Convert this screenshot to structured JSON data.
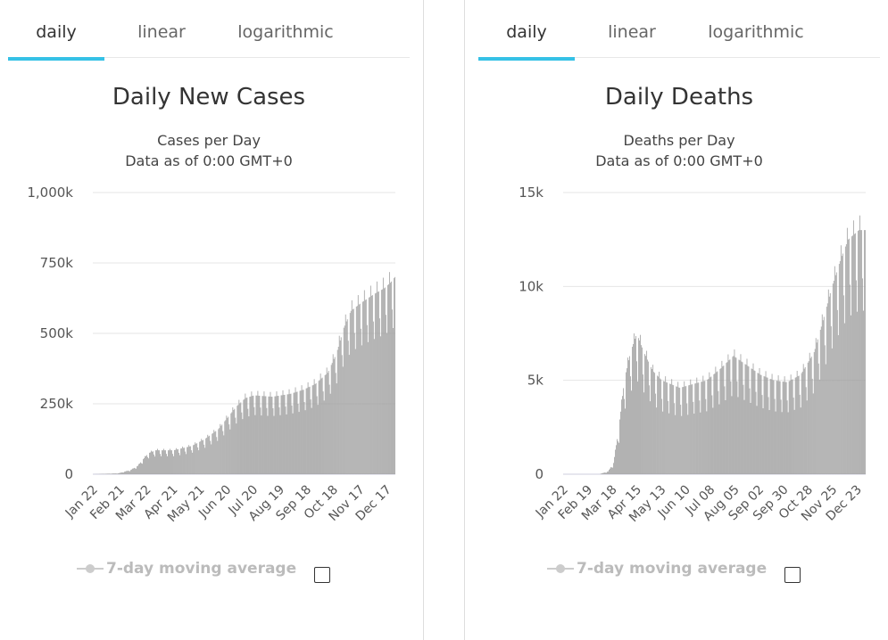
{
  "tabs": {
    "left": [
      {
        "label": "daily"
      },
      {
        "label": "linear"
      },
      {
        "label": "logarithmic"
      }
    ],
    "right": [
      {
        "label": "daily"
      },
      {
        "label": "linear"
      },
      {
        "label": "logarithmic"
      }
    ]
  },
  "legend": {
    "label": "7-day moving average"
  },
  "colors": {
    "bar": "#999999",
    "accent": "#35c1e6",
    "grid": "#e6e6e6"
  },
  "chart_data": [
    {
      "type": "bar",
      "title": "Daily New Cases",
      "subtitle": "Cases per Day",
      "subtitle2": "Data as of 0:00 GMT+0",
      "ylim": [
        0,
        1000000
      ],
      "yticks": [
        {
          "v": 0,
          "label": "0"
        },
        {
          "v": 250000,
          "label": "250k"
        },
        {
          "v": 500000,
          "label": "500k"
        },
        {
          "v": 750000,
          "label": "750k"
        },
        {
          "v": 1000000,
          "label": "1,000k"
        }
      ],
      "xticks": [
        "Jan 22",
        "Feb 21",
        "Mar 22",
        "Apr 21",
        "May 21",
        "Jun 20",
        "Jul 20",
        "Aug 19",
        "Sep 18",
        "Oct 18",
        "Nov 17",
        "Dec 17"
      ],
      "anchors": [
        [
          0,
          0
        ],
        [
          28,
          3000
        ],
        [
          42,
          15000
        ],
        [
          50,
          30000
        ],
        [
          55,
          50000
        ],
        [
          62,
          75000
        ],
        [
          70,
          85000
        ],
        [
          90,
          85000
        ],
        [
          110,
          100000
        ],
        [
          125,
          125000
        ],
        [
          140,
          160000
        ],
        [
          150,
          200000
        ],
        [
          160,
          240000
        ],
        [
          170,
          270000
        ],
        [
          180,
          280000
        ],
        [
          200,
          275000
        ],
        [
          220,
          285000
        ],
        [
          235,
          300000
        ],
        [
          248,
          320000
        ],
        [
          262,
          360000
        ],
        [
          272,
          430000
        ],
        [
          280,
          520000
        ],
        [
          288,
          580000
        ],
        [
          300,
          610000
        ],
        [
          314,
          640000
        ],
        [
          325,
          660000
        ],
        [
          332,
          680000
        ],
        [
          337,
          700000
        ]
      ],
      "weekly_dip": 0.25,
      "series": [
        {
          "values": []
        }
      ]
    },
    {
      "type": "bar",
      "title": "Daily Deaths",
      "subtitle": "Deaths per Day",
      "subtitle2": "Data as of 0:00 GMT+0",
      "ylim": [
        0,
        15000
      ],
      "yticks": [
        {
          "v": 0,
          "label": "0"
        },
        {
          "v": 5000,
          "label": "5k"
        },
        {
          "v": 10000,
          "label": "10k"
        },
        {
          "v": 15000,
          "label": "15k"
        }
      ],
      "xticks": [
        "Jan 22",
        "Feb 19",
        "Mar 18",
        "Apr 15",
        "May 13",
        "Jun 10",
        "Jul 08",
        "Aug 05",
        "Sep 02",
        "Sep 30",
        "Oct 28",
        "Nov 25",
        "Dec 23"
      ],
      "anchors": [
        [
          0,
          0
        ],
        [
          40,
          0
        ],
        [
          50,
          150
        ],
        [
          56,
          600
        ],
        [
          62,
          2500
        ],
        [
          68,
          5000
        ],
        [
          75,
          6500
        ],
        [
          82,
          7500
        ],
        [
          90,
          6500
        ],
        [
          100,
          5500
        ],
        [
          110,
          5000
        ],
        [
          120,
          4800
        ],
        [
          130,
          4600
        ],
        [
          145,
          4800
        ],
        [
          160,
          5000
        ],
        [
          175,
          5600
        ],
        [
          190,
          6300
        ],
        [
          205,
          5800
        ],
        [
          220,
          5300
        ],
        [
          235,
          5000
        ],
        [
          250,
          4900
        ],
        [
          265,
          5300
        ],
        [
          280,
          6500
        ],
        [
          290,
          8200
        ],
        [
          300,
          10000
        ],
        [
          310,
          11500
        ],
        [
          318,
          12500
        ],
        [
          330,
          13000
        ],
        [
          337,
          13000
        ]
      ],
      "weekly_dip": 0.33,
      "series": [
        {
          "values": []
        }
      ]
    }
  ]
}
